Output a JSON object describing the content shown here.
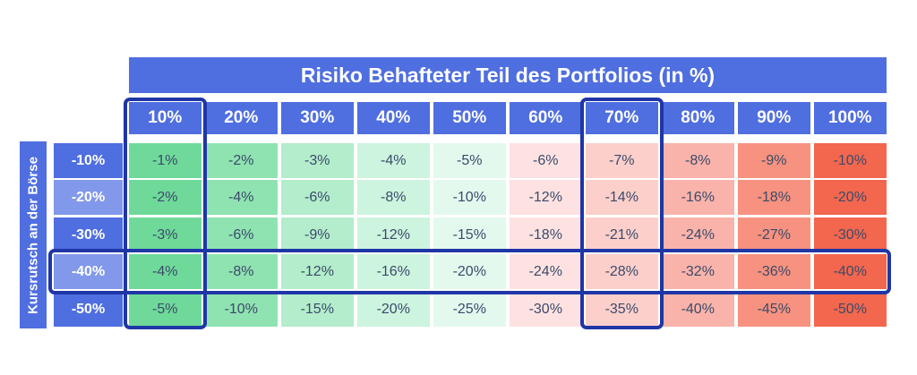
{
  "chart_data": {
    "type": "heatmap",
    "title": "Risiko Behafteter Teil des Portfolios (in %)",
    "ylabel": "Kursrutsch an der Börse",
    "columns": [
      "10%",
      "20%",
      "30%",
      "40%",
      "50%",
      "60%",
      "70%",
      "80%",
      "90%",
      "100%"
    ],
    "rows": [
      "-10%",
      "-20%",
      "-30%",
      "-40%",
      "-50%"
    ],
    "values": [
      [
        -1,
        -2,
        -3,
        -4,
        -5,
        -6,
        -7,
        -8,
        -9,
        -10
      ],
      [
        -2,
        -4,
        -6,
        -8,
        -10,
        -12,
        -14,
        -16,
        -18,
        -20
      ],
      [
        -3,
        -6,
        -9,
        -12,
        -15,
        -18,
        -21,
        -24,
        -27,
        -30
      ],
      [
        -4,
        -8,
        -12,
        -16,
        -20,
        -24,
        -28,
        -32,
        -36,
        -40
      ],
      [
        -5,
        -10,
        -15,
        -20,
        -25,
        -30,
        -35,
        -40,
        -45,
        -50
      ]
    ],
    "value_labels": [
      [
        "-1%",
        "-2%",
        "-3%",
        "-4%",
        "-5%",
        "-6%",
        "-7%",
        "-8%",
        "-9%",
        "-10%"
      ],
      [
        "-2%",
        "-4%",
        "-6%",
        "-8%",
        "-10%",
        "-12%",
        "-14%",
        "-16%",
        "-18%",
        "-20%"
      ],
      [
        "-3%",
        "-6%",
        "-9%",
        "-12%",
        "-15%",
        "-18%",
        "-21%",
        "-24%",
        "-27%",
        "-30%"
      ],
      [
        "-4%",
        "-8%",
        "-12%",
        "-16%",
        "-20%",
        "-24%",
        "-28%",
        "-32%",
        "-36%",
        "-40%"
      ],
      [
        "-5%",
        "-10%",
        "-15%",
        "-20%",
        "-25%",
        "-30%",
        "-35%",
        "-40%",
        "-45%",
        "-50%"
      ]
    ],
    "highlighted_columns": [
      "10%",
      "70%"
    ],
    "highlighted_rows": [
      "-40%"
    ]
  },
  "colors": {
    "header": "#4f6ee0",
    "highlight_border": "#1f36a6",
    "cell_text": "#3b4a6b",
    "green_scale": [
      "#6fd99a",
      "#8fe3b1",
      "#b3edcb",
      "#cdf4de",
      "#e3f9ee"
    ],
    "red_scale": [
      "#fde2e1",
      "#fccfcb",
      "#f9b3aa",
      "#f6927f",
      "#f2674e"
    ],
    "row_header_scale": [
      "#4f6ee0",
      "#8298ea",
      "#4f6ee0",
      "#8298ea",
      "#4f6ee0"
    ]
  }
}
